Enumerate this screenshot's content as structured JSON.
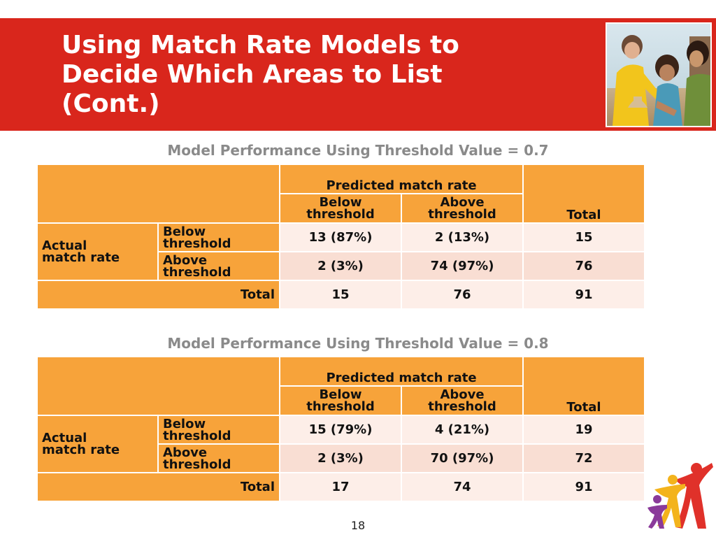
{
  "slide": {
    "title_lines": [
      "Using Match Rate Models to",
      "Decide Which Areas to List",
      "(Cont.)"
    ],
    "page_number": "18"
  },
  "tables": [
    {
      "title": "Model Performance Using Threshold Value = 0.7",
      "predicted_header": "Predicted match rate",
      "col_below": [
        "Below",
        "threshold"
      ],
      "col_above": [
        "Above",
        "threshold"
      ],
      "col_total": "Total",
      "actual_label": [
        "Actual",
        "match rate"
      ],
      "row_below": [
        "Below",
        "threshold"
      ],
      "row_above": [
        "Above",
        "threshold"
      ],
      "row_total": "Total",
      "values": {
        "below_below": "13 (87%)",
        "below_above": "2 (13%)",
        "below_total": "15",
        "above_below": "2 (3%)",
        "above_above": "74 (97%)",
        "above_total": "76",
        "total_below": "15",
        "total_above": "76",
        "total_total": "91"
      }
    },
    {
      "title": "Model Performance Using Threshold Value = 0.8",
      "predicted_header": "Predicted match rate",
      "col_below": [
        "Below",
        "threshold"
      ],
      "col_above": [
        "Above",
        "threshold"
      ],
      "col_total": "Total",
      "actual_label": [
        "Actual",
        "match rate"
      ],
      "row_below": [
        "Below",
        "threshold"
      ],
      "row_above": [
        "Above",
        "threshold"
      ],
      "row_total": "Total",
      "values": {
        "below_below": "15 (79%)",
        "below_above": "4 (21%)",
        "below_total": "19",
        "above_below": "2 (3%)",
        "above_above": "70 (97%)",
        "above_total": "72",
        "total_below": "17",
        "total_above": "74",
        "total_total": "91"
      }
    }
  ],
  "colors": {
    "header_band": "#d9261c",
    "table_orange": "#f7a33a",
    "cell_light": "#fdeee8",
    "cell_light_alt": "#f9ded3",
    "table_title_gray": "#8a8a8a"
  },
  "images": {
    "header_photo": "children-playing-sandcastle-photo",
    "logo": "family-figures-logo"
  }
}
